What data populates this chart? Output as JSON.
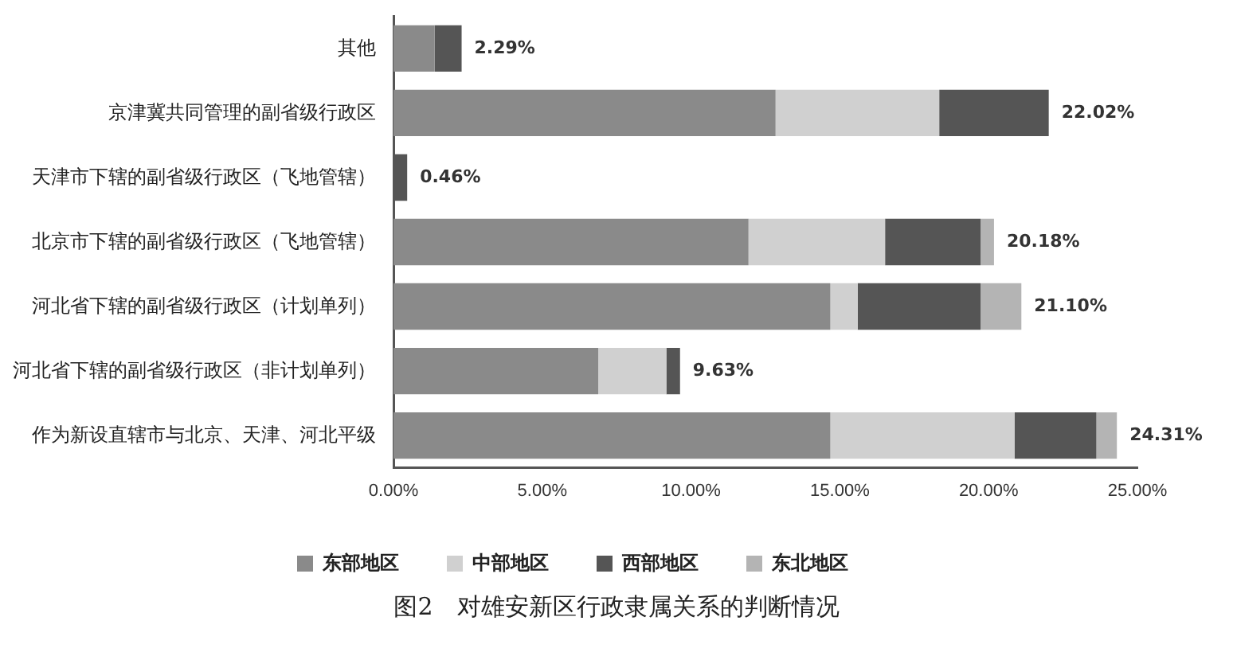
{
  "chart_data": {
    "type": "bar",
    "orientation": "horizontal",
    "stacked": true,
    "title": "图2　对雄安新区行政隶属关系的判断情况",
    "categories": [
      "其他",
      "京津冀共同管理的副省级行政区",
      "天津市下辖的副省级行政区（飞地管辖）",
      "北京市下辖的副省级行政区（飞地管辖）",
      "河北省下辖的副省级行政区（计划单列）",
      "河北省下辖的副省级行政区（非计划单列）",
      "作为新设直辖市与北京、天津、河北平级"
    ],
    "series": [
      {
        "name": "东部地区",
        "color": "#8a8a8a",
        "values": [
          1.38,
          12.84,
          null,
          11.93,
          14.68,
          6.88,
          14.68
        ]
      },
      {
        "name": "中部地区",
        "color": "#d0d0d0",
        "values": [
          null,
          5.5,
          null,
          4.59,
          0.92,
          2.29,
          6.19
        ]
      },
      {
        "name": "西部地区",
        "color": "#555555",
        "values": [
          0.91,
          3.68,
          0.46,
          3.21,
          4.13,
          0.46,
          2.75
        ]
      },
      {
        "name": "东北地区",
        "color": "#b4b4b4",
        "values": [
          null,
          null,
          null,
          0.45,
          1.37,
          null,
          0.69
        ]
      }
    ],
    "totals": [
      "2.29%",
      "22.02%",
      "0.46%",
      "20.18%",
      "21.10%",
      "9.63%",
      "24.31%"
    ],
    "xlim": [
      0,
      25
    ],
    "xticks": [
      {
        "value": 0,
        "label": "0.00%"
      },
      {
        "value": 5,
        "label": "5.00%"
      },
      {
        "value": 10,
        "label": "10.00%"
      },
      {
        "value": 15,
        "label": "15.00%"
      },
      {
        "value": 20,
        "label": "20.00%"
      },
      {
        "value": 25,
        "label": "25.00%"
      }
    ],
    "legend": "bottom",
    "grid": false
  }
}
